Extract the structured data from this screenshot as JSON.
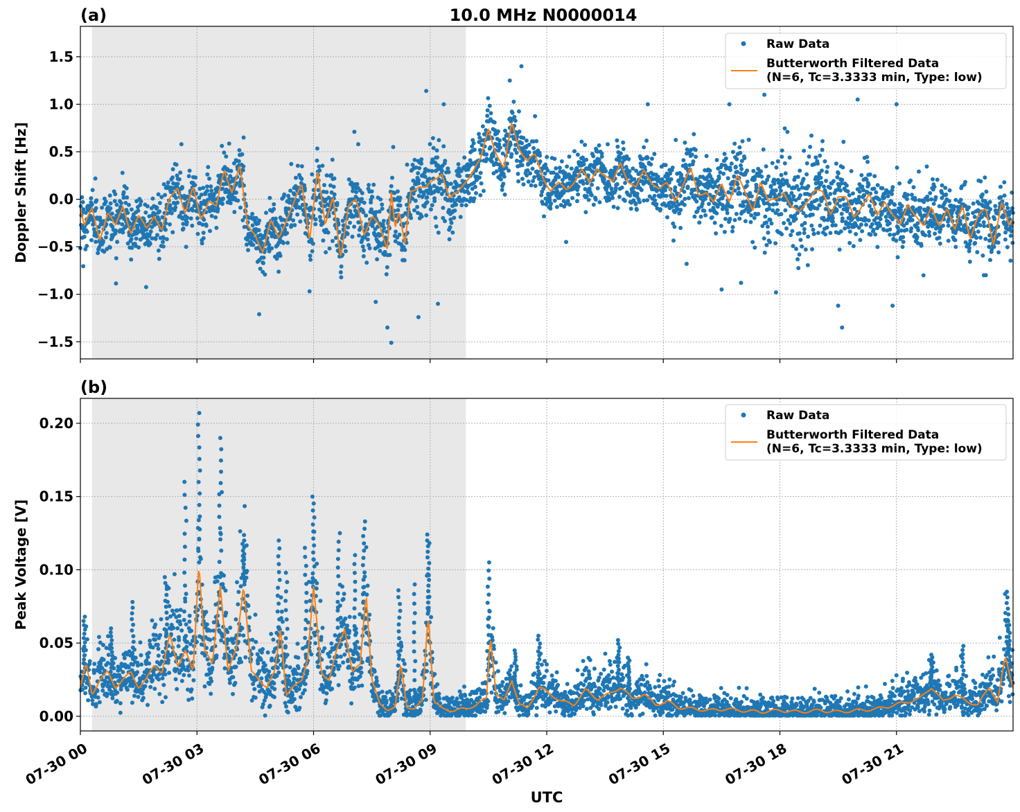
{
  "figure": {
    "title": "10.0 MHz N0000014",
    "xlabel": "UTC"
  },
  "colors": {
    "raw": "#1f77b4",
    "filtered": "#ff7f0e",
    "shade": "#e8e8e8",
    "grid": "#b0b0b0"
  },
  "chart_data": [
    {
      "type": "scatter",
      "panel_label": "(a)",
      "ylabel": "Doppler Shift [Hz]",
      "xlabel": "",
      "x_unit": "hours UTC",
      "xlim": [
        0,
        24
      ],
      "ylim": [
        -1.68,
        1.82
      ],
      "yticks": [
        -1.5,
        -1.0,
        -0.5,
        0.0,
        0.5,
        1.0,
        1.5
      ],
      "ytick_labels": [
        "−1.5",
        "−1.0",
        "−0.5",
        "0.0",
        "0.5",
        "1.0",
        "1.5"
      ],
      "shaded_region": [
        0.3,
        9.92
      ],
      "grid": true,
      "legend": {
        "position": "top-right",
        "entries": [
          "Raw Data",
          "Butterworth Filtered Data",
          "(N=6, Tc=3.3333 min, Type: low)"
        ]
      },
      "series": [
        {
          "name": "Raw Data",
          "style": "points",
          "scatter_half_width": [
            [
              0,
              0.3
            ],
            [
              2,
              0.3
            ],
            [
              4,
              0.3
            ],
            [
              6,
              0.3
            ],
            [
              8,
              0.35
            ],
            [
              9,
              0.4
            ],
            [
              10,
              0.35
            ],
            [
              12,
              0.25
            ],
            [
              15,
              0.3
            ],
            [
              17,
              0.45
            ],
            [
              18.5,
              0.5
            ],
            [
              20,
              0.4
            ],
            [
              22,
              0.3
            ],
            [
              24,
              0.3
            ]
          ],
          "outliers": [
            [
              8,
              -1.51
            ],
            [
              7.9,
              -1.35
            ],
            [
              8.7,
              -1.24
            ],
            [
              4.6,
              -1.21
            ],
            [
              7.6,
              -1.08
            ],
            [
              9.2,
              -1.1
            ],
            [
              8.9,
              1.14
            ],
            [
              9.35,
              1.0
            ],
            [
              7.05,
              0.71
            ],
            [
              7.15,
              0.58
            ],
            [
              8.05,
              0.55
            ],
            [
              2.6,
              0.58
            ],
            [
              4.2,
              0.65
            ],
            [
              11.35,
              1.4
            ],
            [
              11.05,
              1.25
            ],
            [
              14.6,
              1.0
            ],
            [
              19.5,
              1.38
            ],
            [
              18.6,
              1.62
            ],
            [
              19.6,
              -1.35
            ],
            [
              19.5,
              -1.12
            ],
            [
              20.9,
              -1.12
            ],
            [
              17.9,
              -0.98
            ],
            [
              16.5,
              -0.95
            ],
            [
              17,
              -0.88
            ],
            [
              12.5,
              -0.45
            ],
            [
              15.6,
              -0.68
            ],
            [
              21,
              1.0
            ],
            [
              23.3,
              -0.8
            ],
            [
              23.25,
              -0.8
            ],
            [
              20,
              1.05
            ],
            [
              17.6,
              1.1
            ],
            [
              16.7,
              1.0
            ]
          ]
        },
        {
          "name": "Butterworth Filtered Data",
          "style": "line",
          "x": [
            0,
            0.1,
            0.3,
            0.5,
            0.7,
            0.9,
            1.1,
            1.3,
            1.5,
            1.7,
            1.9,
            2.1,
            2.3,
            2.5,
            2.7,
            2.9,
            3.1,
            3.3,
            3.5,
            3.7,
            3.9,
            4.1,
            4.3,
            4.5,
            4.7,
            4.9,
            5.1,
            5.3,
            5.5,
            5.7,
            5.9,
            6.1,
            6.3,
            6.5,
            6.7,
            6.9,
            7.1,
            7.3,
            7.5,
            7.7,
            7.9,
            8.0,
            8.1,
            8.2,
            8.35,
            8.5,
            8.7,
            8.9,
            9.1,
            9.3,
            9.5,
            9.7,
            9.9,
            10.1,
            10.3,
            10.5,
            10.7,
            10.9,
            11.1,
            11.3,
            11.5,
            11.7,
            11.9,
            12.1,
            12.3,
            12.5,
            12.7,
            12.9,
            13.1,
            13.3,
            13.5,
            13.7,
            13.9,
            14.1,
            14.3,
            14.5,
            14.7,
            14.9,
            15.1,
            15.3,
            15.5,
            15.7,
            15.9,
            16.1,
            16.3,
            16.5,
            16.7,
            16.9,
            17.1,
            17.3,
            17.5,
            17.7,
            17.9,
            18.1,
            18.3,
            18.5,
            18.7,
            18.9,
            19.1,
            19.3,
            19.5,
            19.7,
            19.9,
            20.1,
            20.3,
            20.5,
            20.7,
            20.9,
            21.1,
            21.3,
            21.5,
            21.7,
            21.9,
            22.1,
            22.3,
            22.5,
            22.7,
            22.9,
            23.1,
            23.3,
            23.5,
            23.7,
            23.9,
            24
          ],
          "y": [
            -0.1,
            -0.3,
            -0.1,
            -0.4,
            -0.15,
            -0.3,
            -0.05,
            -0.35,
            -0.2,
            -0.3,
            -0.15,
            -0.35,
            0.0,
            0.15,
            -0.15,
            0.1,
            -0.2,
            0.0,
            -0.1,
            0.3,
            0.1,
            0.35,
            -0.3,
            -0.35,
            -0.55,
            -0.25,
            -0.4,
            -0.2,
            -0.05,
            0.15,
            -0.4,
            0.3,
            -0.3,
            0.05,
            -0.6,
            -0.1,
            0.0,
            -0.35,
            -0.2,
            -0.3,
            -0.5,
            0.1,
            -0.3,
            -0.15,
            -0.5,
            0.1,
            0.15,
            0.1,
            0.2,
            0.3,
            0.0,
            0.05,
            0.2,
            0.3,
            0.4,
            0.75,
            0.5,
            0.3,
            0.8,
            0.55,
            0.4,
            0.45,
            0.25,
            0.1,
            0.15,
            0.1,
            0.2,
            0.3,
            0.15,
            0.35,
            0.25,
            0.15,
            0.4,
            0.2,
            0.1,
            0.3,
            0.2,
            0.1,
            0.15,
            0.0,
            0.15,
            0.3,
            0.05,
            0.1,
            -0.05,
            0.15,
            0.0,
            0.25,
            0.05,
            -0.1,
            0.2,
            -0.05,
            0.0,
            0.1,
            -0.1,
            -0.15,
            0.0,
            0.1,
            0.05,
            -0.15,
            0.05,
            0.0,
            -0.2,
            -0.05,
            0.05,
            -0.2,
            0.0,
            -0.15,
            -0.3,
            -0.05,
            -0.15,
            -0.3,
            -0.1,
            -0.25,
            -0.1,
            -0.35,
            -0.05,
            -0.4,
            -0.2,
            -0.1,
            -0.45,
            -0.05,
            -0.3,
            -0.2
          ]
        }
      ]
    },
    {
      "type": "scatter",
      "panel_label": "(b)",
      "ylabel": "Peak Voltage [V]",
      "xlabel": "UTC",
      "x_unit": "hours UTC",
      "xlim": [
        0,
        24
      ],
      "ylim": [
        -0.01,
        0.217
      ],
      "yticks": [
        0.0,
        0.05,
        0.1,
        0.15,
        0.2
      ],
      "ytick_labels": [
        "0.00",
        "0.05",
        "0.10",
        "0.15",
        "0.20"
      ],
      "xticks": [
        0,
        3,
        6,
        9,
        12,
        15,
        18,
        21
      ],
      "xtick_labels": [
        "07-30 00",
        "07-30 03",
        "07-30 06",
        "07-30 09",
        "07-30 12",
        "07-30 15",
        "07-30 18",
        "07-30 21"
      ],
      "shaded_region": [
        0.3,
        9.92
      ],
      "grid": true,
      "legend": {
        "position": "top-right",
        "entries": [
          "Raw Data",
          "Butterworth Filtered Data",
          "(N=6, Tc=3.3333 min, Type: low)"
        ]
      },
      "series": [
        {
          "name": "Raw Data",
          "style": "points",
          "spikes": [
            [
              0.1,
              0.068
            ],
            [
              0.8,
              0.06
            ],
            [
              1.35,
              0.078
            ],
            [
              2.2,
              0.095
            ],
            [
              2.7,
              0.16
            ],
            [
              3.05,
              0.207
            ],
            [
              3.6,
              0.19
            ],
            [
              4.2,
              0.12
            ],
            [
              5.1,
              0.12
            ],
            [
              5.3,
              0.098
            ],
            [
              5.8,
              0.115
            ],
            [
              6.0,
              0.15
            ],
            [
              6.65,
              0.125
            ],
            [
              7.05,
              0.11
            ],
            [
              7.3,
              0.133
            ],
            [
              8.2,
              0.086
            ],
            [
              8.6,
              0.09
            ],
            [
              8.95,
              0.12
            ],
            [
              10.5,
              0.105
            ],
            [
              11.2,
              0.045
            ],
            [
              11.8,
              0.055
            ],
            [
              13.85,
              0.052
            ],
            [
              14.1,
              0.04
            ],
            [
              21.9,
              0.042
            ],
            [
              22.7,
              0.048
            ],
            [
              23.85,
              0.085
            ],
            [
              23.9,
              0.065
            ]
          ]
        },
        {
          "name": "Butterworth Filtered Data",
          "style": "line",
          "x": [
            0,
            0.15,
            0.3,
            0.5,
            0.7,
            0.9,
            1.1,
            1.3,
            1.5,
            1.7,
            1.9,
            2.1,
            2.3,
            2.5,
            2.7,
            2.9,
            3.05,
            3.2,
            3.4,
            3.6,
            3.8,
            4.0,
            4.2,
            4.4,
            4.6,
            4.8,
            5.0,
            5.15,
            5.3,
            5.5,
            5.7,
            5.85,
            6.0,
            6.2,
            6.4,
            6.6,
            6.8,
            7.0,
            7.2,
            7.35,
            7.5,
            7.7,
            7.9,
            8.1,
            8.25,
            8.4,
            8.6,
            8.8,
            8.95,
            9.1,
            9.3,
            9.6,
            9.9,
            10.2,
            10.45,
            10.55,
            10.7,
            10.9,
            11.1,
            11.3,
            11.5,
            11.8,
            12.1,
            12.4,
            12.7,
            13.0,
            13.3,
            13.6,
            13.9,
            14.2,
            14.5,
            14.8,
            15.1,
            15.4,
            15.8,
            16.2,
            16.6,
            17.0,
            17.5,
            18.0,
            18.5,
            19.0,
            19.5,
            20.0,
            20.5,
            21.0,
            21.3,
            21.6,
            21.9,
            22.2,
            22.5,
            22.8,
            23.1,
            23.4,
            23.6,
            23.8,
            24
          ],
          "y": [
            0.02,
            0.035,
            0.015,
            0.025,
            0.03,
            0.02,
            0.025,
            0.03,
            0.02,
            0.025,
            0.035,
            0.03,
            0.055,
            0.035,
            0.045,
            0.03,
            0.105,
            0.045,
            0.035,
            0.09,
            0.03,
            0.045,
            0.09,
            0.03,
            0.025,
            0.02,
            0.03,
            0.06,
            0.015,
            0.02,
            0.025,
            0.04,
            0.088,
            0.03,
            0.025,
            0.045,
            0.06,
            0.03,
            0.035,
            0.085,
            0.025,
            0.008,
            0.005,
            0.006,
            0.035,
            0.007,
            0.005,
            0.01,
            0.07,
            0.01,
            0.005,
            0.004,
            0.005,
            0.008,
            0.012,
            0.055,
            0.015,
            0.01,
            0.025,
            0.008,
            0.005,
            0.02,
            0.015,
            0.01,
            0.008,
            0.018,
            0.012,
            0.015,
            0.02,
            0.012,
            0.015,
            0.008,
            0.01,
            0.006,
            0.005,
            0.004,
            0.005,
            0.004,
            0.003,
            0.004,
            0.003,
            0.004,
            0.003,
            0.004,
            0.005,
            0.008,
            0.01,
            0.012,
            0.02,
            0.01,
            0.015,
            0.01,
            0.008,
            0.02,
            0.01,
            0.04,
            0.02
          ]
        }
      ]
    }
  ]
}
